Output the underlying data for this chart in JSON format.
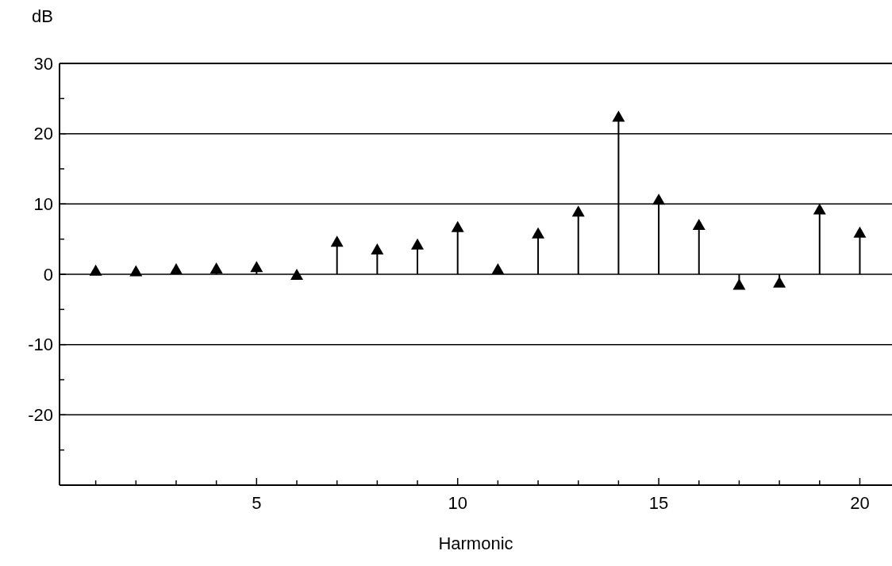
{
  "chart_data": {
    "type": "lollipop",
    "xlabel": "Harmonic",
    "ylabel": "dB",
    "x": [
      1,
      2,
      3,
      4,
      5,
      6,
      7,
      8,
      9,
      10,
      11,
      12,
      13,
      14,
      15,
      16,
      17,
      18,
      19,
      20
    ],
    "values": [
      0.6,
      0.5,
      0.8,
      0.9,
      1.1,
      0,
      4.7,
      3.6,
      4.3,
      6.8,
      0.8,
      5.9,
      9.0,
      22.5,
      10.7,
      7.1,
      -1.4,
      -1.1,
      9.3,
      6.0
    ],
    "color": "#000000",
    "marker": "triangle",
    "grid": "y",
    "xlim": [
      0.1,
      20.8
    ],
    "xticks": [
      {
        "value": 1,
        "label": null
      },
      {
        "value": 2,
        "label": null
      },
      {
        "value": 3,
        "label": null
      },
      {
        "value": 4,
        "label": null
      },
      5,
      {
        "value": 6,
        "label": null
      },
      {
        "value": 7,
        "label": null
      },
      {
        "value": 8,
        "label": null
      },
      {
        "value": 9,
        "label": null
      },
      10,
      {
        "value": 11,
        "label": null
      },
      {
        "value": 12,
        "label": null
      },
      {
        "value": 13,
        "label": null
      },
      {
        "value": 14,
        "label": null
      },
      15,
      {
        "value": 16,
        "label": null
      },
      {
        "value": 17,
        "label": null
      },
      {
        "value": 18,
        "label": null
      },
      {
        "value": 19,
        "label": null
      },
      20
    ],
    "ylim": [
      -30,
      30
    ],
    "yticks": [
      {
        "value": -30,
        "label": null
      },
      {
        "value": -25,
        "label": null
      },
      -20,
      {
        "value": -15,
        "label": null
      },
      -10,
      {
        "value": -5,
        "label": null
      },
      0,
      {
        "value": 5,
        "label": null
      },
      10,
      {
        "value": 15,
        "label": null
      },
      20,
      {
        "value": 25,
        "label": null
      },
      30
    ]
  }
}
